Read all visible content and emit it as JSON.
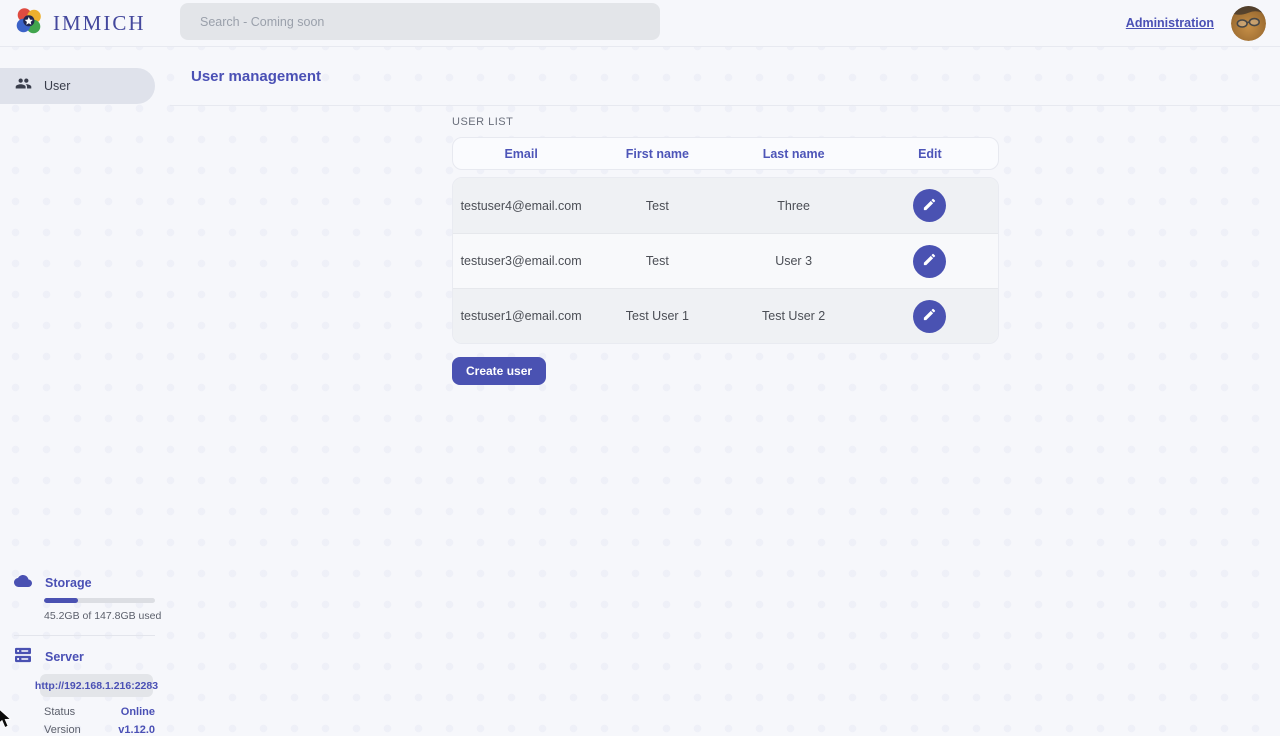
{
  "navbar": {
    "brand": "IMMICH",
    "search_placeholder": "Search - Coming soon",
    "administration_label": "Administration"
  },
  "sidebar": {
    "items": [
      {
        "label": "User",
        "icon": "users-icon",
        "active": true
      }
    ],
    "storage": {
      "title": "Storage",
      "usage_text": "45.2GB of 147.8GB used",
      "percent_used": 30.6
    },
    "server": {
      "title": "Server",
      "url": "http://192.168.1.216:2283",
      "status_label": "Status",
      "status_value": "Online",
      "version_label": "Version",
      "version_value": "v1.12.0"
    }
  },
  "main": {
    "page_title": "User management",
    "section_title": "USER LIST",
    "table": {
      "columns": [
        "Email",
        "First name",
        "Last name",
        "Edit"
      ],
      "rows": [
        {
          "email": "testuser4@email.com",
          "first_name": "Test",
          "last_name": "Three"
        },
        {
          "email": "testuser3@email.com",
          "first_name": "Test",
          "last_name": "User 3"
        },
        {
          "email": "testuser1@email.com",
          "first_name": "Test User 1",
          "last_name": "Test User 2"
        }
      ]
    },
    "create_user_label": "Create user"
  },
  "colors": {
    "accent": "#4a52b2",
    "accent_text": "#4a50b5",
    "page_bg": "#f6f7fb",
    "row_stripe": "#eff1f4"
  }
}
